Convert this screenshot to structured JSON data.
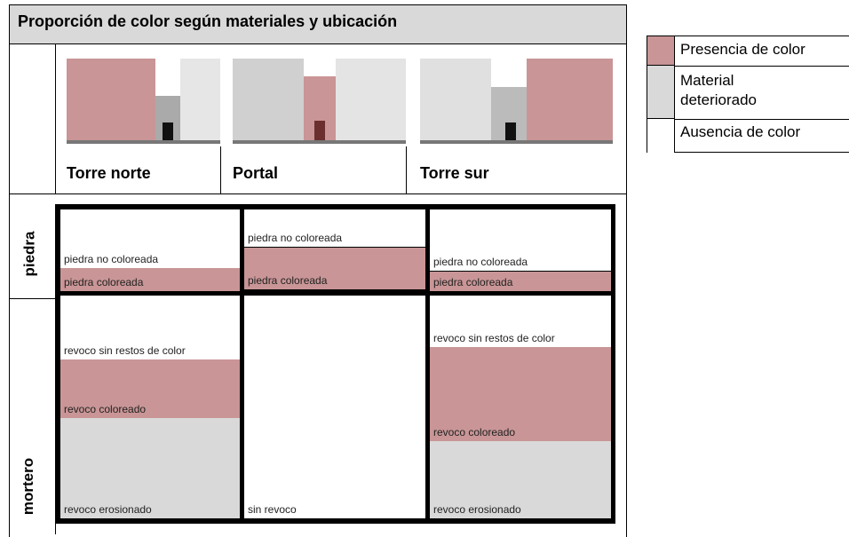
{
  "header": {
    "title": "Proporción de color según materiales y ubicación"
  },
  "columns": [
    "Torre norte",
    "Portal",
    "Torre sur"
  ],
  "rows": [
    "piedra",
    "mortero"
  ],
  "segments": {
    "piedra": [
      [
        "piedra no coloreada",
        "piedra coloreada"
      ],
      [
        "piedra no coloreada",
        "piedra coloreada"
      ],
      [
        "piedra no coloreada",
        "piedra coloreada"
      ]
    ],
    "mortero": [
      [
        "revoco sin restos de color",
        "revoco coloreado",
        "revoco erosionado"
      ],
      [
        "sin revoco"
      ],
      [
        "revoco sin restos de color",
        "revoco coloreado",
        "revoco erosionado"
      ]
    ]
  },
  "legend": [
    "Presencia de color",
    "Material deteriorado",
    "Ausencia de color"
  ]
}
